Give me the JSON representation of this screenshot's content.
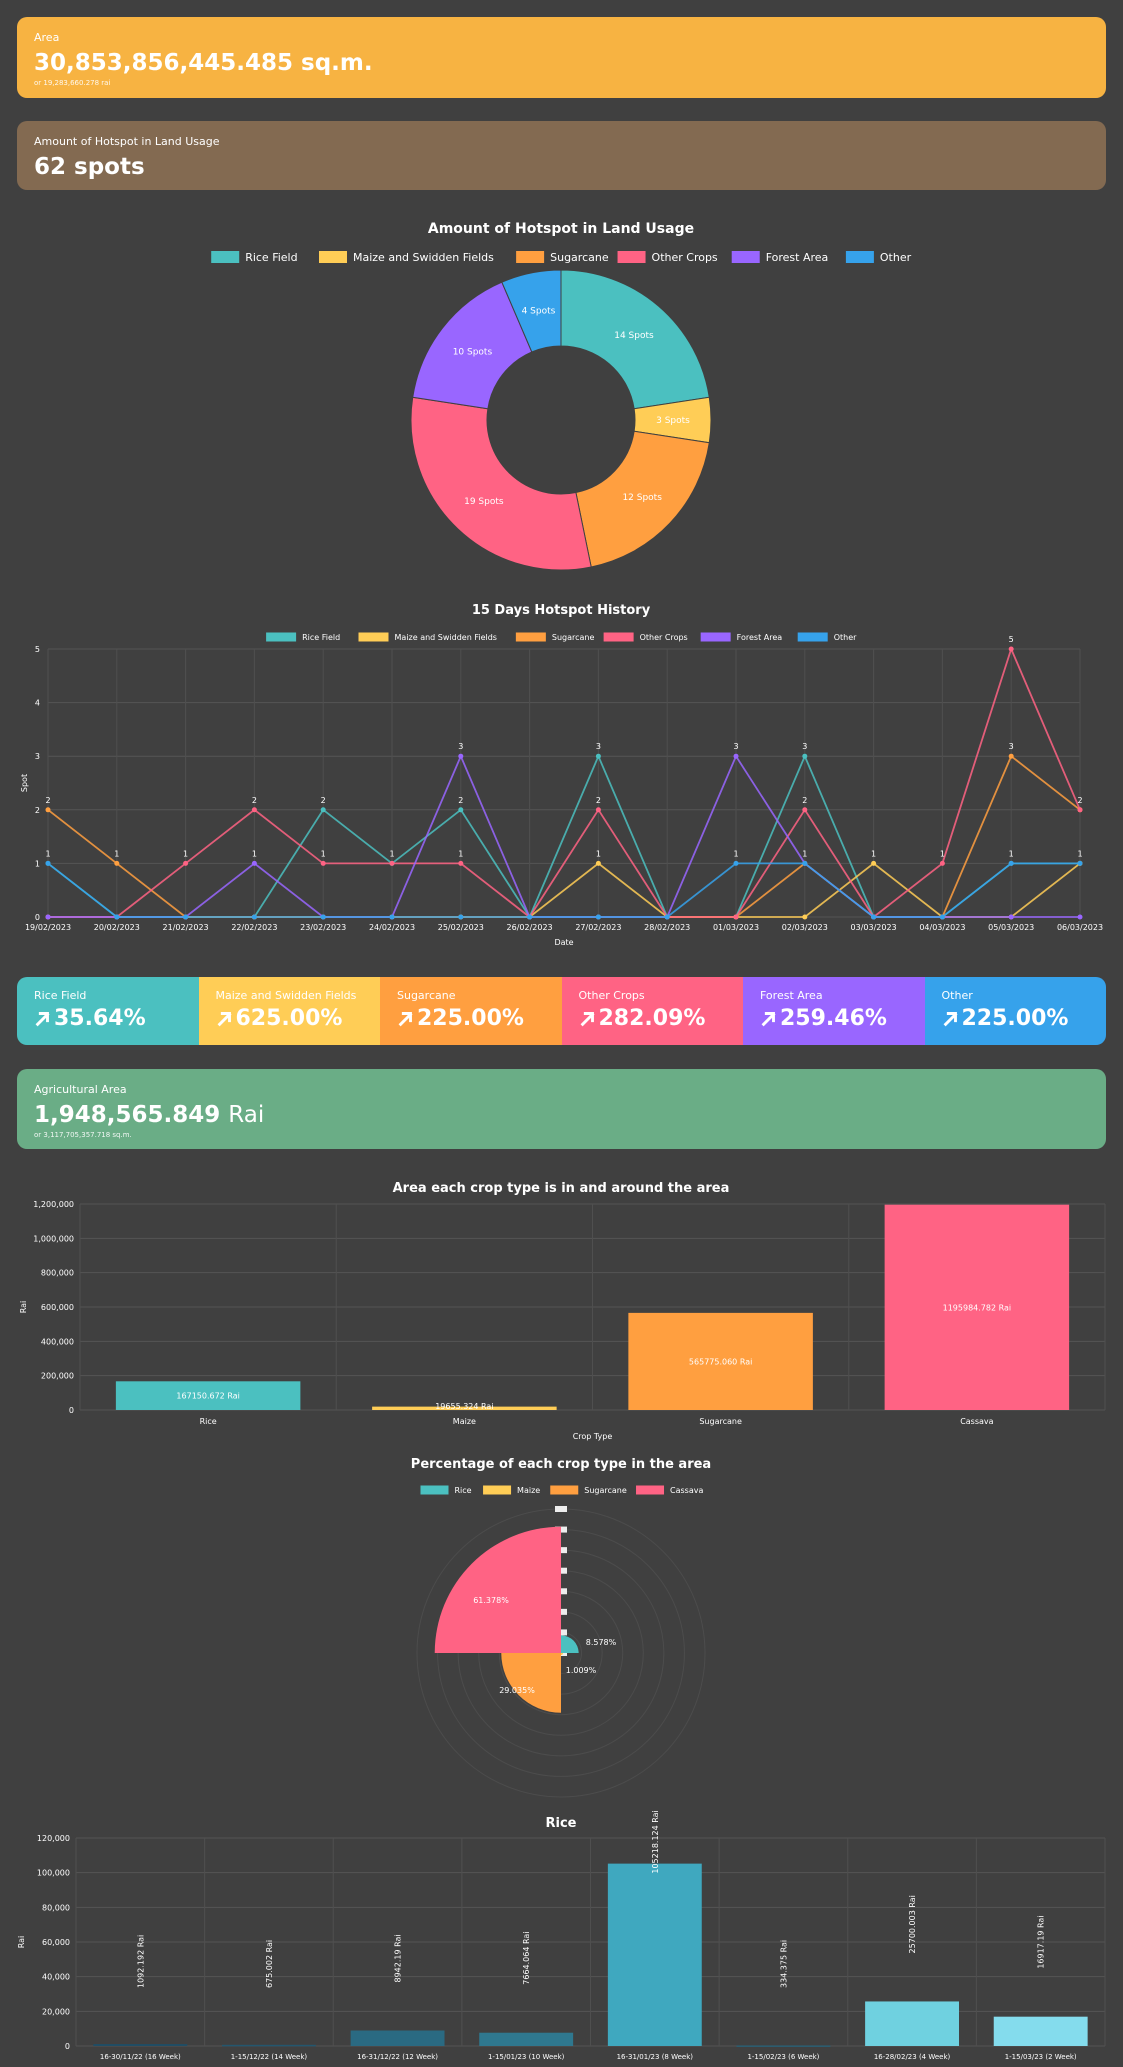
{
  "area_card": {
    "label": "Area",
    "value": "30,853,856,445.485 sq.m.",
    "sub": "or 19,283,660.278 rai",
    "color": "#f7b342"
  },
  "hotspot_card": {
    "label": "Amount of Hotspot in Land Usage",
    "value": "62 spots",
    "color": "#836a51"
  },
  "legend_colors": {
    "Rice Field": "#4bc0c0",
    "Maize and Swidden Fields": "#ffcd56",
    "Sugarcane": "#ff9f40",
    "Other Crops": "#ff6384",
    "Forest Area": "#9966ff",
    "Other": "#36a2eb"
  },
  "pct_strip": [
    {
      "label": "Rice Field",
      "value": "35.64%",
      "color": "#4bc0c0"
    },
    {
      "label": "Maize and Swidden Fields",
      "value": "625.00%",
      "color": "#ffcd56"
    },
    {
      "label": "Sugarcane",
      "value": "225.00%",
      "color": "#ff9f40"
    },
    {
      "label": "Other Crops",
      "value": "282.09%",
      "color": "#ff6384"
    },
    {
      "label": "Forest Area",
      "value": "259.46%",
      "color": "#9966ff"
    },
    {
      "label": "Other",
      "value": "225.00%",
      "color": "#36a2eb"
    }
  ],
  "agri_card": {
    "label": "Agricultural Area",
    "value": "1,948,565.849",
    "unit": "Rai",
    "sub": "or 3,117,705,357.718 sq.m.",
    "color": "#6aad86"
  },
  "chart_data": [
    {
      "type": "pie",
      "title": "Amount of Hotspot in Land Usage",
      "categories": [
        "Rice Field",
        "Maize and Swidden Fields",
        "Sugarcane",
        "Other Crops",
        "Forest Area",
        "Other"
      ],
      "values": [
        14,
        3,
        12,
        19,
        10,
        4
      ],
      "labels": [
        "14 Spots",
        "3 Spots",
        "12 Spots",
        "19 Spots",
        "10 Spots",
        "4 Spots"
      ],
      "colors": [
        "#4bc0c0",
        "#ffcd56",
        "#ff9f40",
        "#ff6384",
        "#9966ff",
        "#36a2eb"
      ],
      "legend": "top"
    },
    {
      "type": "line",
      "title": "15 Days Hotspot History",
      "xlabel": "Date",
      "ylabel": "Spot",
      "ylim": [
        0,
        5
      ],
      "yticks": [
        "0",
        "1",
        "2",
        "3",
        "4",
        "5"
      ],
      "x": [
        "19/02/2023",
        "20/02/2023",
        "21/02/2023",
        "22/02/2023",
        "23/02/2023",
        "24/02/2023",
        "25/02/2023",
        "26/02/2023",
        "27/02/2023",
        "28/02/2023",
        "01/03/2023",
        "02/03/2023",
        "03/03/2023",
        "04/03/2023",
        "05/03/2023",
        "06/03/2023"
      ],
      "series": [
        {
          "name": "Rice Field",
          "color": "#4bc0c0",
          "values": [
            1,
            0,
            0,
            0,
            2,
            1,
            2,
            0,
            3,
            0,
            0,
            3,
            0,
            0,
            1,
            1
          ]
        },
        {
          "name": "Maize and Swidden Fields",
          "color": "#ffcd56",
          "values": [
            0,
            0,
            0,
            0,
            0,
            0,
            0,
            0,
            1,
            0,
            0,
            0,
            1,
            0,
            0,
            1
          ]
        },
        {
          "name": "Sugarcane",
          "color": "#ff9f40",
          "values": [
            2,
            1,
            0,
            0,
            0,
            0,
            0,
            0,
            0,
            0,
            0,
            1,
            0,
            0,
            3,
            2
          ]
        },
        {
          "name": "Other Crops",
          "color": "#ff6384",
          "values": [
            0,
            0,
            1,
            2,
            1,
            1,
            1,
            0,
            2,
            0,
            0,
            2,
            0,
            1,
            5,
            2
          ]
        },
        {
          "name": "Forest Area",
          "color": "#9966ff",
          "values": [
            0,
            0,
            0,
            1,
            0,
            0,
            3,
            0,
            0,
            0,
            3,
            1,
            0,
            0,
            0,
            0
          ]
        },
        {
          "name": "Other",
          "color": "#36a2eb",
          "values": [
            1,
            0,
            0,
            0,
            0,
            0,
            0,
            0,
            0,
            0,
            1,
            1,
            0,
            0,
            1,
            1
          ]
        }
      ],
      "point_labels": [
        "2",
        "1",
        "1",
        "2",
        "2",
        "1",
        "3",
        "",
        "3",
        "",
        "3",
        "3",
        "1",
        "1",
        "5",
        "2"
      ],
      "point_labels2": [
        "1",
        "",
        "",
        "1",
        "1",
        "",
        "2",
        "",
        "2",
        "",
        "1",
        "2",
        "",
        "",
        "3",
        "1"
      ],
      "point_labels3": [
        "",
        "",
        "",
        "",
        "",
        "",
        "1",
        "",
        "1",
        "",
        "",
        "1",
        "",
        "",
        "1",
        ""
      ],
      "legend": "top"
    },
    {
      "type": "bar",
      "title": "Area each crop type is in and around the area",
      "xlabel": "Crop Type",
      "ylabel": "Rai",
      "ylim": [
        0,
        1200000
      ],
      "yticks": [
        "0",
        "200,000",
        "400,000",
        "600,000",
        "800,000",
        "1,000,000",
        "1,200,000"
      ],
      "categories": [
        "Rice",
        "Maize",
        "Sugarcane",
        "Cassava"
      ],
      "values": [
        167150.672,
        19655.324,
        565775.06,
        1195984.782
      ],
      "labels": [
        "167150.672 Rai",
        "19655.324 Rai",
        "565775.060 Rai",
        "1195984.782 Rai"
      ],
      "colors": [
        "#4bc0c0",
        "#ffcd56",
        "#ff9f40",
        "#ff6384"
      ]
    },
    {
      "type": "pie",
      "subtype": "polar-area",
      "title": "Percentage of each crop type in the area",
      "categories": [
        "Rice",
        "Maize",
        "Sugarcane",
        "Cassava"
      ],
      "values": [
        8.578,
        1.009,
        29.035,
        61.378
      ],
      "labels": [
        "8.578%",
        "1.009%",
        "29.035%",
        "61.378%"
      ],
      "colors": [
        "#4bc0c0",
        "#ffcd56",
        "#ff9f40",
        "#ff6384"
      ],
      "legend": "top"
    },
    {
      "type": "bar",
      "title": "Rice",
      "ylabel": "Rai",
      "ylim": [
        0,
        120000
      ],
      "yticks": [
        "0",
        "20,000",
        "40,000",
        "60,000",
        "80,000",
        "100,000",
        "120,000"
      ],
      "categories": [
        "16-30/11/22 (16 Week)",
        "1-15/12/22 (14 Week)",
        "16-31/12/22 (12 Week)",
        "1-15/01/23 (10 Week)",
        "16-31/01/23 (8 Week)",
        "1-15/02/23 (6 Week)",
        "16-28/02/23 (4 Week)",
        "1-15/03/23 (2 Week)"
      ],
      "values": [
        1092.192,
        675.002,
        8942.19,
        7664.064,
        105218.124,
        334.375,
        25700.003,
        16917.19
      ],
      "labels": [
        "1092.192 Rai",
        "675.002 Rai",
        "8942.19 Rai",
        "7664.064 Rai",
        "105218.124 Rai",
        "334.375 Rai",
        "25700.003 Rai",
        "16917.19 Rai"
      ],
      "colors": [
        "#1f4e66",
        "#23576f",
        "#2a6a82",
        "#2f788f",
        "#3fa8bf",
        "#2b5f73",
        "#6fd1e0",
        "#84dced"
      ]
    }
  ]
}
